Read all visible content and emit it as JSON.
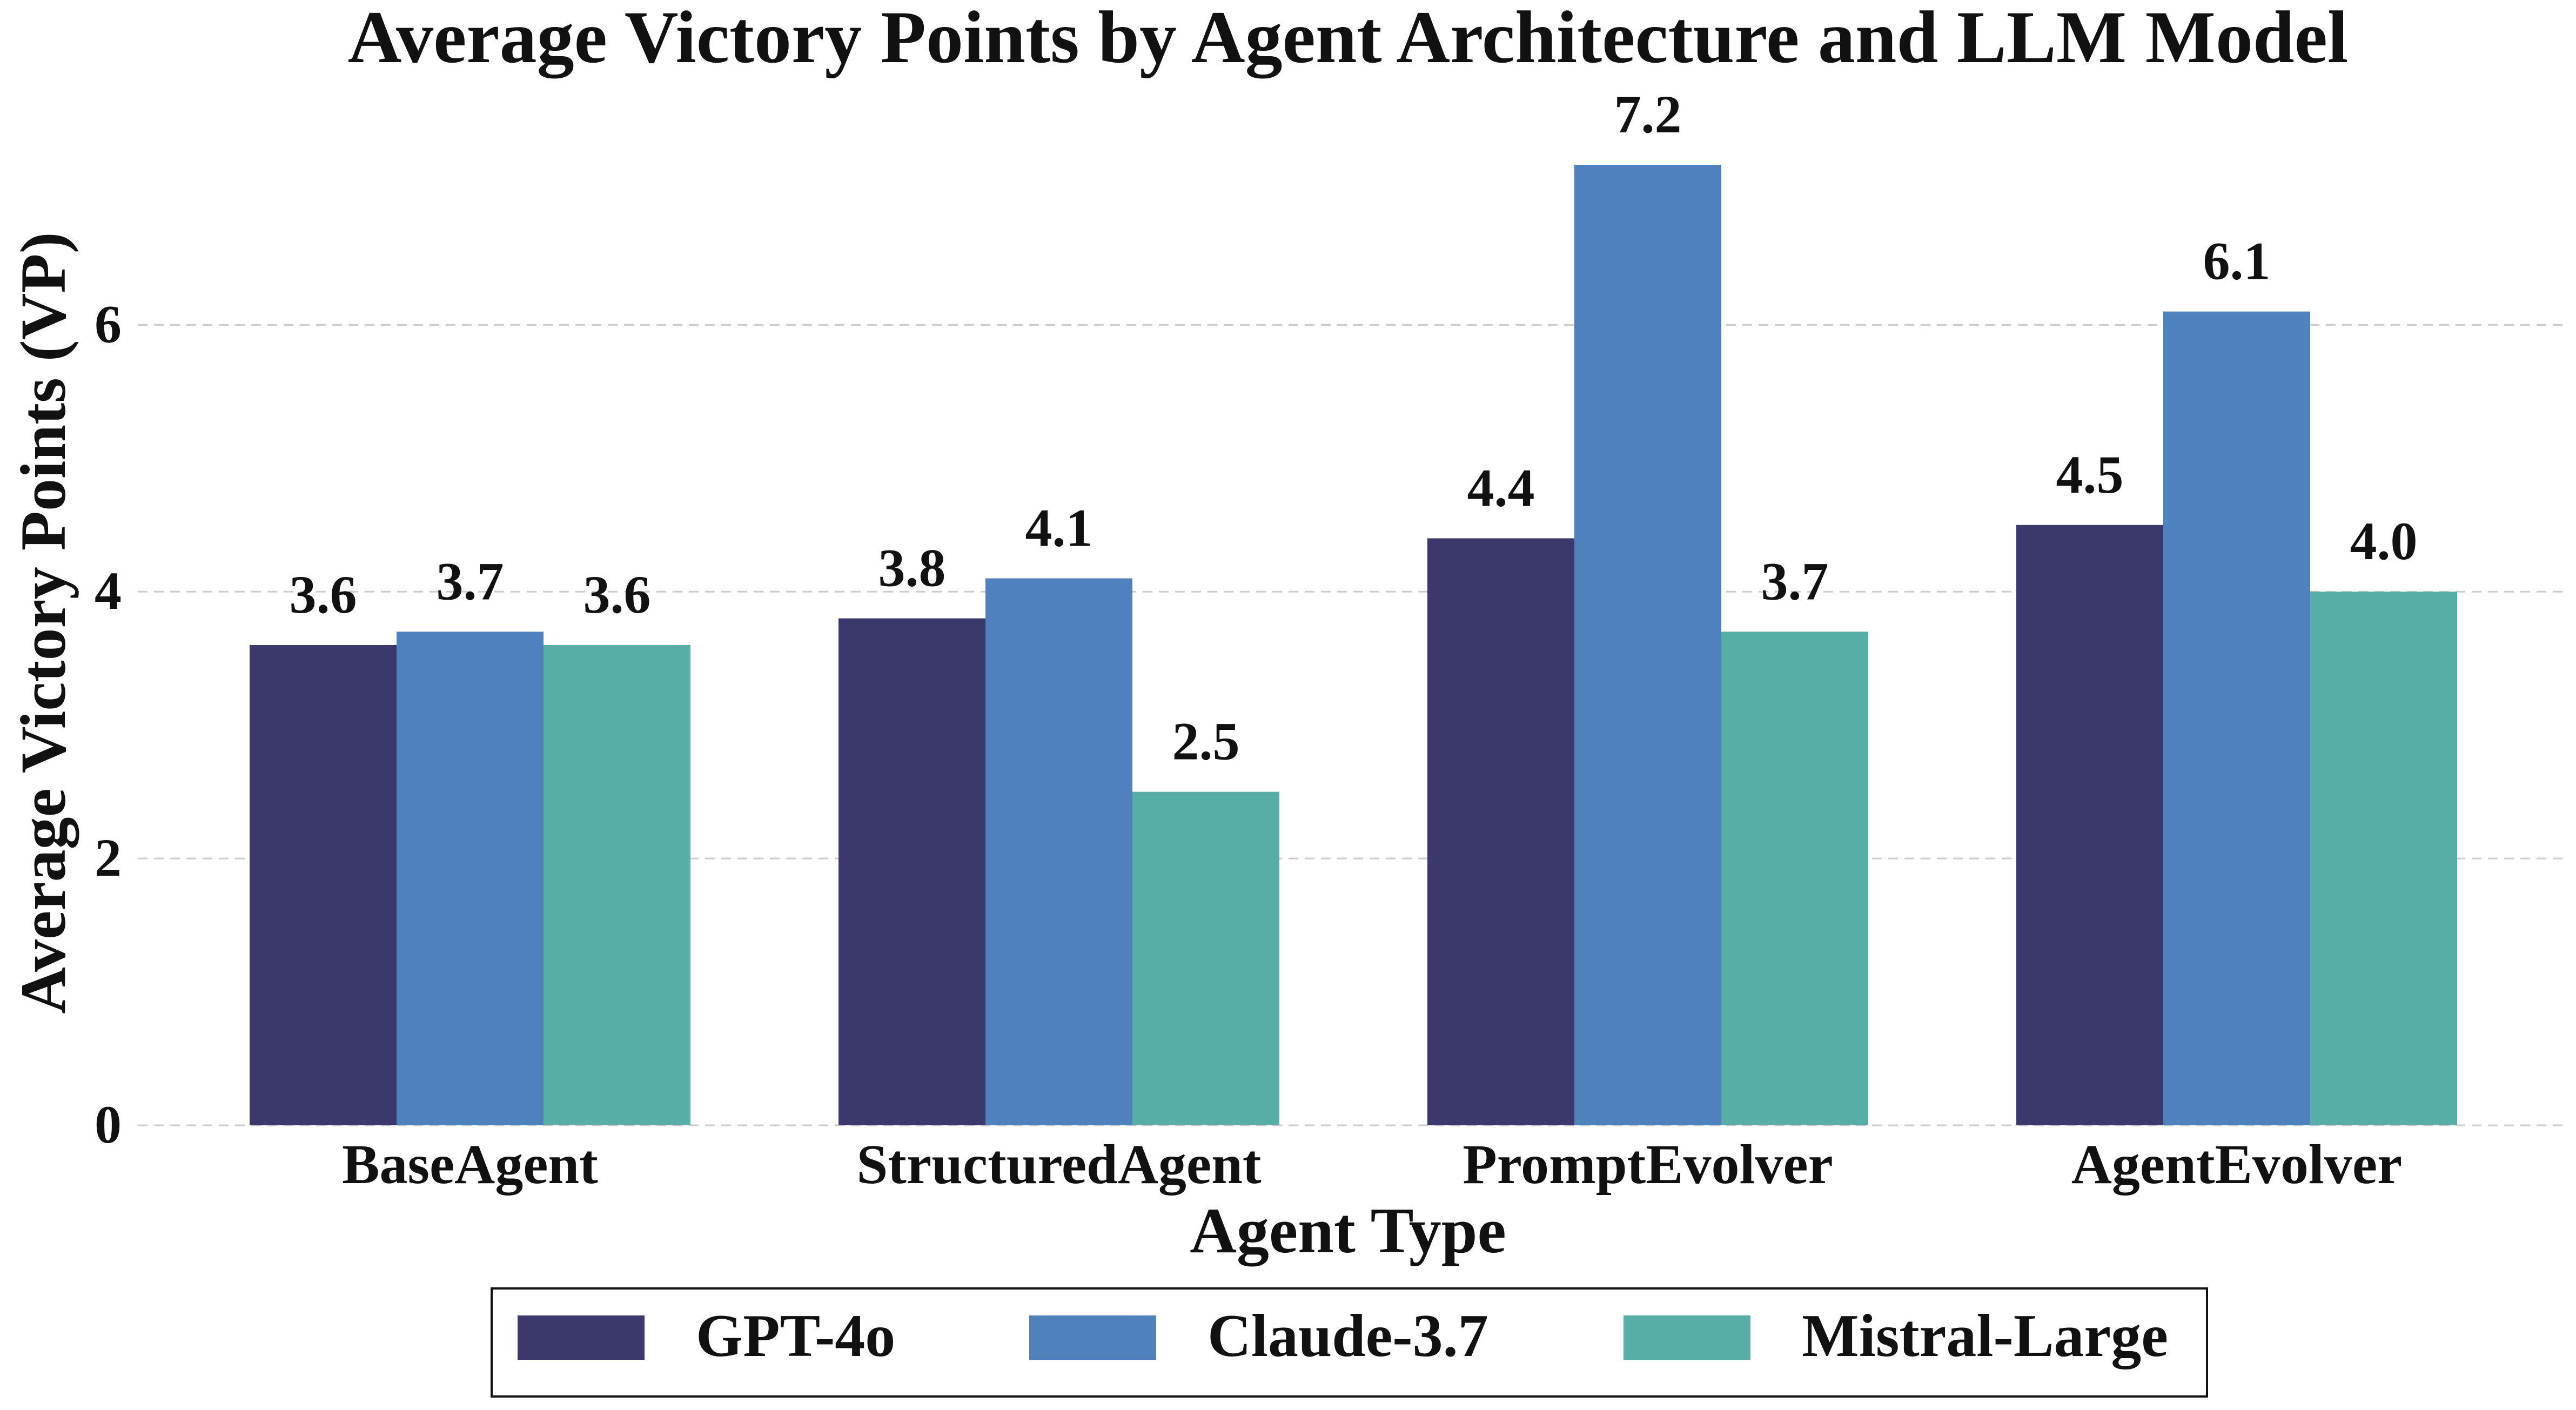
{
  "chart_data": {
    "type": "bar",
    "title": "Average Victory Points by Agent Architecture and LLM Model",
    "xlabel": "Agent Type",
    "ylabel": "Average Victory Points (VP)",
    "categories": [
      "BaseAgent",
      "StructuredAgent",
      "PromptEvolver",
      "AgentEvolver"
    ],
    "series": [
      {
        "name": "GPT-4o",
        "color": "#3b386b",
        "values": [
          3.6,
          3.8,
          4.4,
          4.5
        ]
      },
      {
        "name": "Claude-3.7",
        "color": "#4f82bd",
        "values": [
          3.7,
          4.1,
          7.2,
          6.1
        ]
      },
      {
        "name": "Mistral-Large",
        "color": "#57aea6",
        "values": [
          3.6,
          2.5,
          3.7,
          4.0
        ]
      }
    ],
    "ylim": [
      0,
      7.2
    ],
    "yticks": [
      0,
      2,
      4,
      6
    ],
    "grid": true,
    "legend_position": "bottom"
  }
}
